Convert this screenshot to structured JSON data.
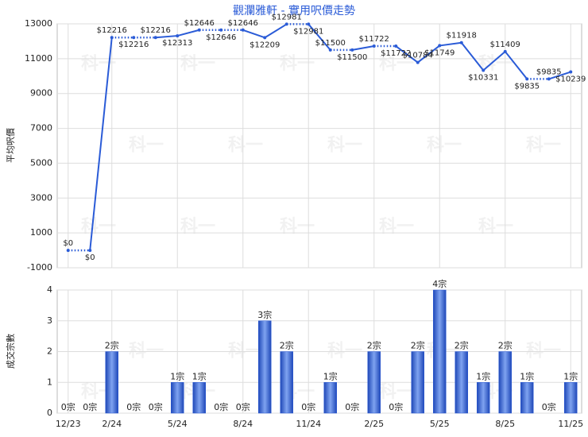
{
  "chart_data": [
    {
      "type": "line",
      "title": "觀瀾雅軒 - 實用呎價走勢",
      "ylabel": "平均呎價",
      "watermark": "科一",
      "categories": [
        "12/23",
        null,
        "2/24",
        null,
        null,
        "5/24",
        null,
        null,
        "8/24",
        null,
        null,
        "11/24",
        null,
        null,
        "2/25",
        null,
        null,
        "5/25",
        null,
        null,
        "8/25",
        null,
        null,
        "11/25"
      ],
      "series": [
        {
          "name": "實用呎價",
          "color": "#2a5bd7",
          "values": [
            0,
            0,
            12216,
            12216,
            12216,
            12313,
            12646,
            12646,
            12646,
            12209,
            12981,
            12981,
            11500,
            11500,
            11722,
            11722,
            10784,
            11749,
            11918,
            10331,
            11409,
            9835,
            9835,
            10239
          ],
          "value_labels": [
            "$0",
            "$0",
            "$12216",
            "$12216",
            "$12216",
            "$12313",
            "$12646",
            "$12646",
            "$12646",
            "$12209",
            "$12981",
            "$12981",
            "$11500",
            "$11500",
            "$11722",
            "$11722",
            "$10784",
            "$11749",
            "$11918",
            "$10331",
            "$11409",
            "$9835",
            "$9835",
            "$10239"
          ]
        }
      ],
      "ylim": [
        -1000,
        13000
      ],
      "yticks": [
        -1000,
        1000,
        3000,
        5000,
        7000,
        9000,
        11000,
        13000
      ],
      "grid": true
    },
    {
      "type": "bar",
      "ylabel": "成交宗數",
      "categories": [
        "12/23",
        null,
        "2/24",
        null,
        null,
        "5/24",
        null,
        null,
        "8/24",
        null,
        null,
        "11/24",
        null,
        null,
        "2/25",
        null,
        null,
        "5/25",
        null,
        null,
        "8/25",
        null,
        null,
        "11/25"
      ],
      "series": [
        {
          "name": "成交宗數",
          "color": "#2a5bd7",
          "values": [
            0,
            0,
            2,
            0,
            0,
            1,
            1,
            0,
            0,
            3,
            2,
            0,
            1,
            0,
            2,
            0,
            2,
            4,
            2,
            1,
            2,
            1,
            0,
            1
          ],
          "value_labels": [
            "0宗",
            "0宗",
            "2宗",
            "0宗",
            "0宗",
            "1宗",
            "1宗",
            "0宗",
            "0宗",
            "3宗",
            "2宗",
            "0宗",
            "1宗",
            "0宗",
            "2宗",
            "0宗",
            "2宗",
            "4宗",
            "2宗",
            "1宗",
            "2宗",
            "1宗",
            "0宗",
            "1宗"
          ]
        }
      ],
      "ylim": [
        0,
        4
      ],
      "yticks": [
        0,
        1,
        2,
        3,
        4
      ],
      "grid": true
    }
  ]
}
